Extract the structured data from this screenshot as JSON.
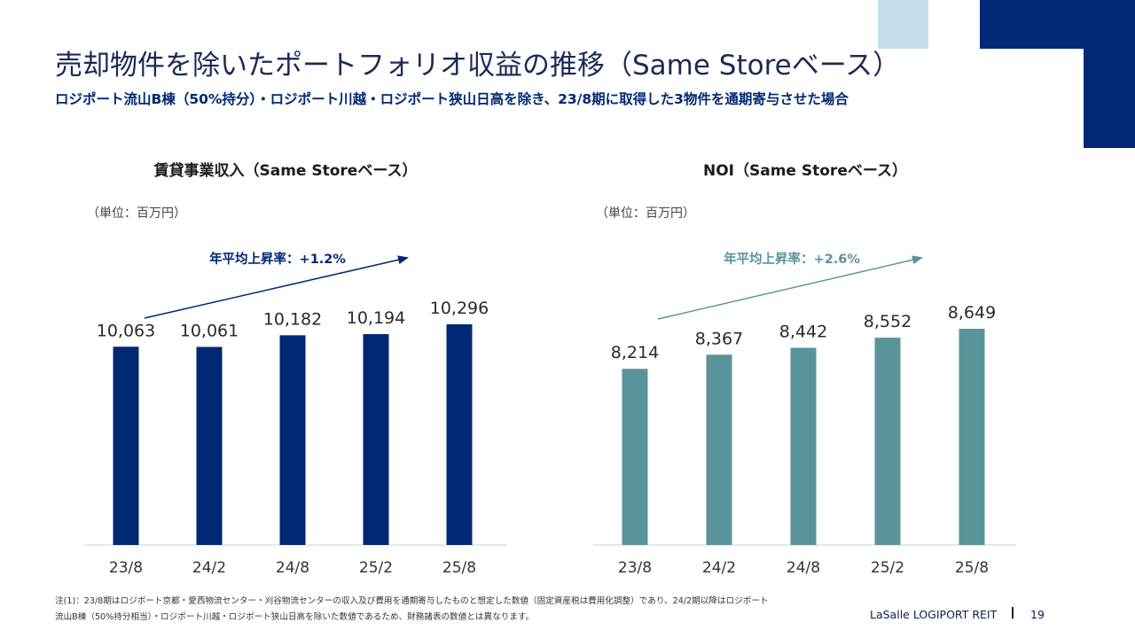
{
  "title": "売却物件を除いたポートフォリオ収益の推移（Same Storeベース）",
  "subtitle": "ロジポート流山B棟（50%持分）・ロジポート川越・ロジポート狭山日高を除き、23/8期に取得した3物件を通期寄与させた場合",
  "footnote_line1": "注(1)：23/8期はロジポート京都・愛西物流センター・刈谷物流センターの収入及び費用を通期寄与したものと想定した数値（固定資産税は費用化調整）であり、24/2期以降はロジポート",
  "footnote_line2": "流山B棟（50%持分相当）・ロジポート川越・ロジポート狭山日高を除いた数値であるため、財務諸表の数値とは異なります。",
  "footer": {
    "brand": "LaSalle LOGIPORT REIT",
    "page": "19"
  },
  "colors": {
    "navy": "#002874",
    "teal": "#5a949b",
    "light_blue": "#c5dfe9"
  },
  "chart_data": [
    {
      "type": "bar",
      "title": "賃貸事業収入（Same Storeベース）",
      "unit": "（単位：百万円）",
      "categories": [
        "23/8",
        "24/2",
        "24/8",
        "25/2",
        "25/8"
      ],
      "values": [
        10063,
        10061,
        10182,
        10194,
        10296
      ],
      "value_labels": [
        "10,063",
        "10,061",
        "10,182",
        "10,194",
        "10,296"
      ],
      "annotation": "年平均上昇率：+1.2%",
      "color": "#002874"
    },
    {
      "type": "bar",
      "title": "NOI（Same Storeベース）",
      "unit": "（単位：百万円）",
      "categories": [
        "23/8",
        "24/2",
        "24/8",
        "25/2",
        "25/8"
      ],
      "values": [
        8214,
        8367,
        8442,
        8552,
        8649
      ],
      "value_labels": [
        "8,214",
        "8,367",
        "8,442",
        "8,552",
        "8,649"
      ],
      "annotation": "年平均上昇率：+2.6%",
      "color": "#5a949b"
    }
  ]
}
